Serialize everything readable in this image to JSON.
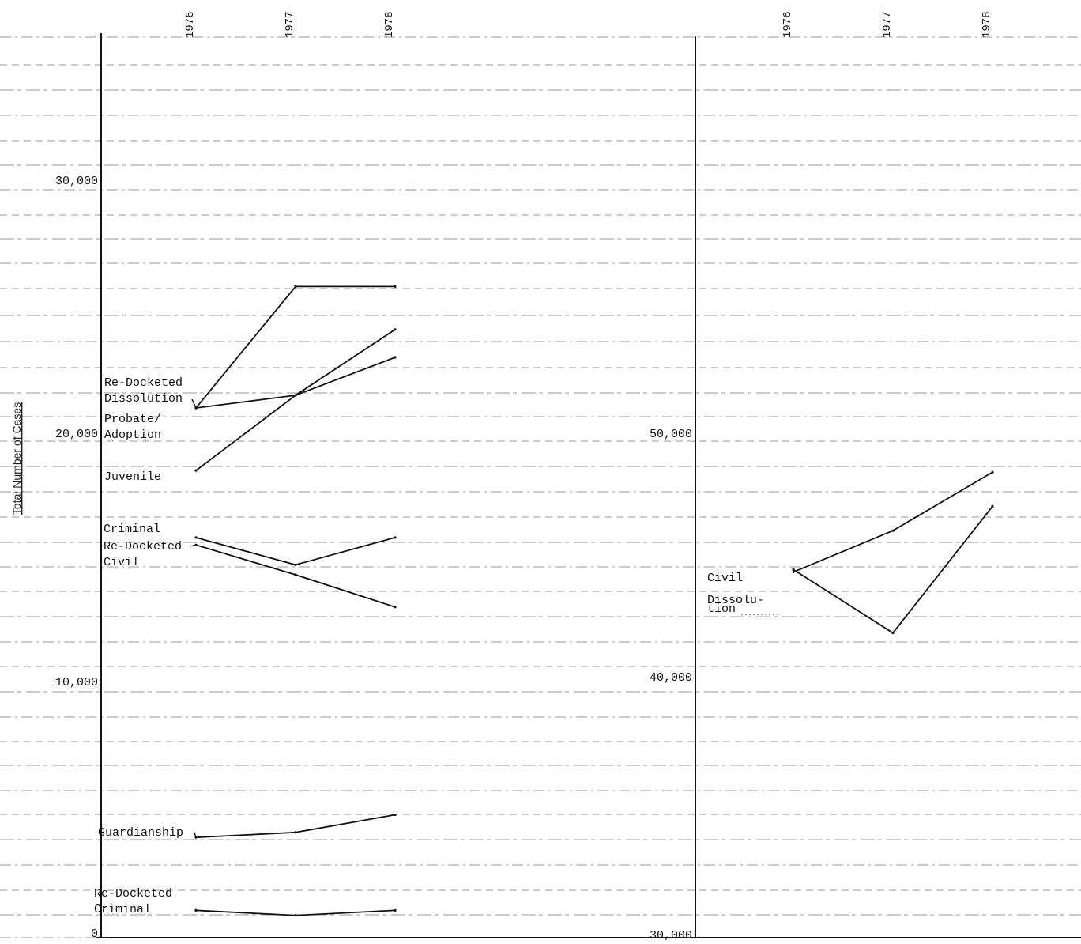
{
  "chart_data": [
    {
      "type": "line",
      "ylabel": "Total Number of Cases",
      "x": [
        "1976",
        "1977",
        "1978"
      ],
      "ylim": [
        0,
        32000
      ],
      "yticks": [
        "0",
        "10,000",
        "20,000",
        "30,000"
      ],
      "series": [
        {
          "name": "Re-Docketed Dissolution",
          "values": [
            21000,
            25800,
            25800
          ]
        },
        {
          "name": "Probate/ Adoption",
          "values": [
            21000,
            21500,
            23000
          ]
        },
        {
          "name": "Juvenile",
          "values": [
            18500,
            21500,
            24100
          ]
        },
        {
          "name": "Criminal",
          "values": [
            15800,
            14700,
            15800
          ]
        },
        {
          "name": "Re-Docketed Civil",
          "values": [
            15500,
            14300,
            13000
          ]
        },
        {
          "name": "Guardianship",
          "values": [
            3800,
            4000,
            4700
          ]
        },
        {
          "name": "Re-Docketed Criminal",
          "values": [
            900,
            700,
            900
          ]
        }
      ],
      "labels": [
        {
          "text": "Re-Docketed",
          "series": 0,
          "line": 0
        },
        {
          "text": "Dissolution",
          "series": 0,
          "line": 1
        },
        {
          "text": "Probate/",
          "series": 1,
          "line": 0
        },
        {
          "text": "Adoption",
          "series": 1,
          "line": 1
        },
        {
          "text": "Juvenile",
          "series": 2,
          "line": 0
        },
        {
          "text": "Criminal",
          "series": 3,
          "line": 0
        },
        {
          "text": "Re-Docketed",
          "series": 4,
          "line": 0
        },
        {
          "text": "Civil",
          "series": 4,
          "line": 1
        },
        {
          "text": "Guardianship",
          "series": 5,
          "line": 0
        },
        {
          "text": "Re-Docketed",
          "series": 6,
          "line": 0
        },
        {
          "text": "Criminal",
          "series": 6,
          "line": 1
        }
      ],
      "grid": true
    },
    {
      "type": "line",
      "x": [
        "1976",
        "1977",
        "1978"
      ],
      "ylim": [
        30000,
        59000
      ],
      "yticks": [
        "30,000",
        "40,000",
        "50,000"
      ],
      "series": [
        {
          "name": "Civil",
          "values": [
            44300,
            46000,
            48400
          ]
        },
        {
          "name": "Dissolution",
          "values": [
            44400,
            41800,
            47000
          ]
        }
      ],
      "labels": [
        {
          "text": "Civil",
          "series": 0,
          "line": 0
        },
        {
          "text": "Dissolu-",
          "series": 1,
          "line": 0
        },
        {
          "text": "tion",
          "series": 1,
          "line": 1
        }
      ],
      "grid": true
    }
  ]
}
